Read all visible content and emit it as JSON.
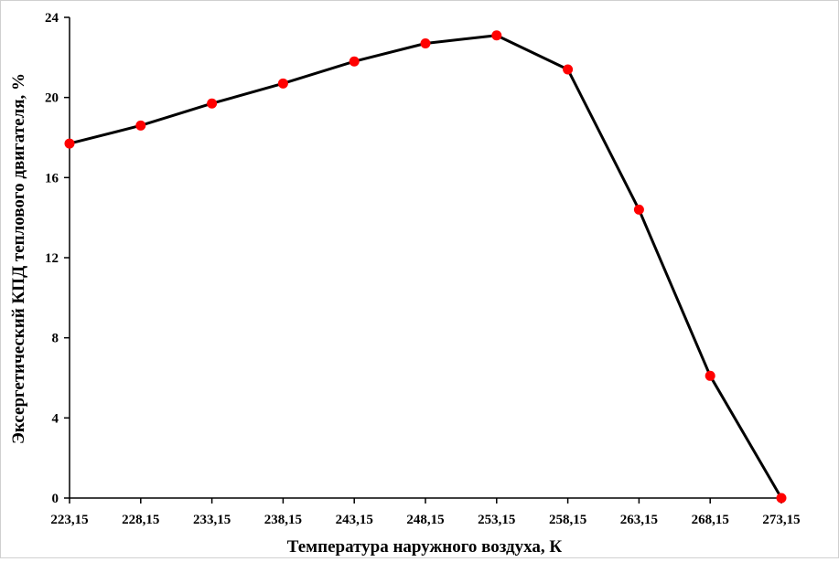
{
  "chart_data": {
    "type": "line",
    "title": "",
    "xlabel": "Температура наружного воздуха, К",
    "ylabel": "Эксергетический КПД теплового двигателя, %",
    "categories": [
      "223,15",
      "228,15",
      "233,15",
      "238,15",
      "243,15",
      "248,15",
      "253,15",
      "258,15",
      "263,15",
      "268,15",
      "273,15"
    ],
    "series": [
      {
        "values": [
          17.7,
          18.6,
          19.7,
          20.7,
          21.8,
          22.7,
          23.1,
          21.4,
          14.4,
          6.1,
          0.0
        ]
      }
    ],
    "ylim": [
      0,
      24
    ],
    "yticks": [
      "0",
      "4",
      "8",
      "12",
      "16",
      "20",
      "24"
    ],
    "ytick_values": [
      0,
      4,
      8,
      12,
      16,
      20,
      24
    ],
    "grid": false,
    "legend": "none",
    "colors": {
      "line": "#000000",
      "marker": "#ff0000",
      "axis": "#000000"
    }
  }
}
